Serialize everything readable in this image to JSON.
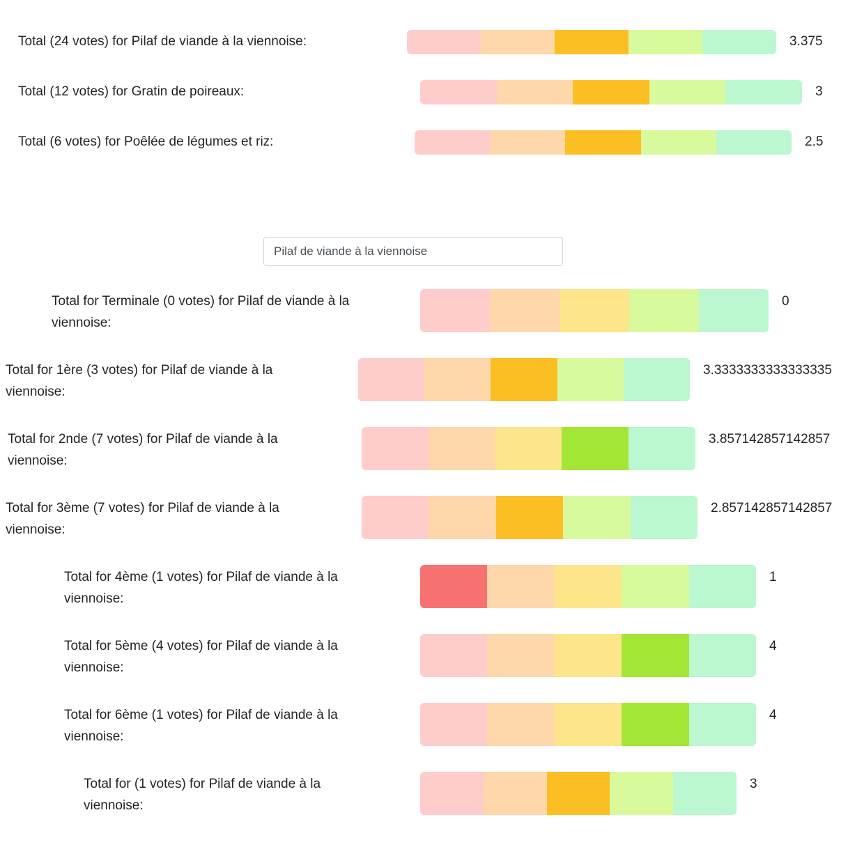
{
  "palette": {
    "light": [
      "#ffcccc",
      "#fed7aa",
      "#fde68a",
      "#d9f99d",
      "#bbf7d0"
    ],
    "active": [
      "#f87171",
      "#fdba74",
      "#fbbf24",
      "#a3e635",
      "#4ade80"
    ]
  },
  "totals": [
    {
      "label": "Total (24 votes) for Pilaf de viande à la viennoise:",
      "score": "3.375",
      "active": 2,
      "wide3": true
    },
    {
      "label": "Total (12 votes) for Gratin de poireaux:",
      "score": "3",
      "active": 2,
      "wide3": true
    },
    {
      "label": "Total (6 votes) for Poêlée de légumes et riz:",
      "score": "2.5",
      "active": 2,
      "wide3": true
    }
  ],
  "dish_select": {
    "value": "Pilaf de viande à la viennoise"
  },
  "class_totals": [
    {
      "label": "Total for Terminale (0 votes) for Pilaf de viande à la viennoise:",
      "score": "0",
      "active": -1
    },
    {
      "label": "Total for 1ère (3 votes) for Pilaf de viande à la viennoise:",
      "score": "3.3333333333333335",
      "active": 2
    },
    {
      "label": "Total for 2nde (7 votes) for Pilaf de viande à la viennoise:",
      "score": "3.857142857142857",
      "active": 3
    },
    {
      "label": "Total for 3ème (7 votes) for Pilaf de viande à la viennoise:",
      "score": "2.857142857142857",
      "active": 2
    },
    {
      "label": "Total for 4ème (1 votes) for Pilaf de viande à la viennoise:",
      "score": "1",
      "active": 0
    },
    {
      "label": "Total for 5ème (4 votes) for Pilaf de viande à la viennoise:",
      "score": "4",
      "active": 3
    },
    {
      "label": "Total for 6ème (1 votes) for Pilaf de viande à la viennoise:",
      "score": "4",
      "active": 3
    },
    {
      "label": "Total for (1 votes) for Pilaf de viande à la viennoise:",
      "score": "3",
      "active": 2
    }
  ]
}
